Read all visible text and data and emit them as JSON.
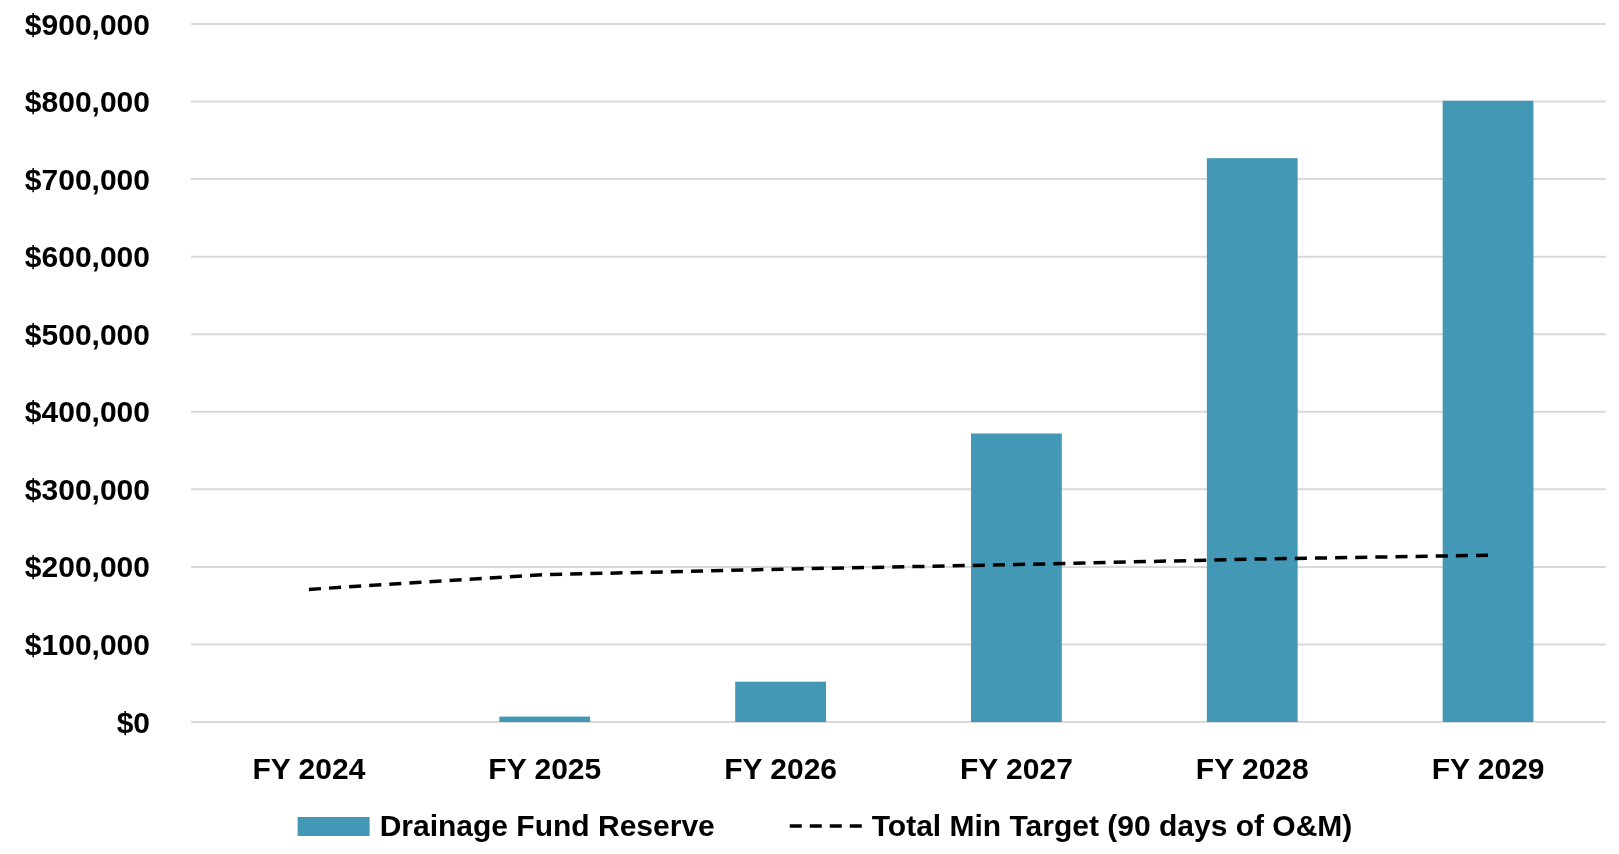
{
  "chart_data": {
    "type": "bar",
    "categories": [
      "FY 2024",
      "FY 2025",
      "FY 2026",
      "FY 2027",
      "FY 2028",
      "FY 2029"
    ],
    "series": [
      {
        "name": "Drainage Fund Reserve",
        "color": "#4398b6",
        "values": [
          0,
          7000,
          52000,
          372000,
          727000,
          801000
        ]
      },
      {
        "name": "Total Min Target (90 days of O&M)",
        "type": "line",
        "color": "#000000",
        "line_style": "dashed",
        "values": [
          171000,
          190000,
          197000,
          203000,
          210000,
          215000
        ]
      }
    ],
    "ylim": [
      0,
      900000
    ],
    "yticks": [
      {
        "value": 0,
        "label": "$0"
      },
      {
        "value": 100000,
        "label": "$100,000"
      },
      {
        "value": 200000,
        "label": "$200,000"
      },
      {
        "value": 300000,
        "label": "$300,000"
      },
      {
        "value": 400000,
        "label": "$400,000"
      },
      {
        "value": 500000,
        "label": "$500,000"
      },
      {
        "value": 600000,
        "label": "$600,000"
      },
      {
        "value": 700000,
        "label": "$700,000"
      },
      {
        "value": 800000,
        "label": "$800,000"
      },
      {
        "value": 900000,
        "label": "$900,000"
      }
    ],
    "grid": "y",
    "legend": "bottom"
  }
}
